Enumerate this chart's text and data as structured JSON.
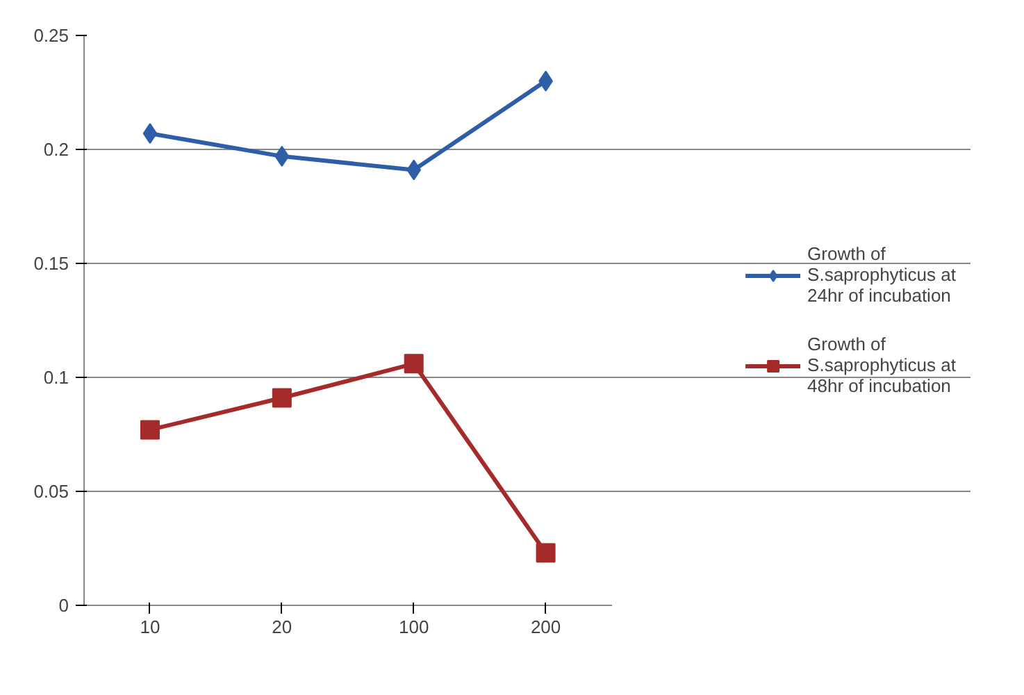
{
  "chart_data": {
    "type": "line",
    "categories": [
      "10",
      "20",
      "100",
      "200"
    ],
    "series": [
      {
        "name": "Growth of S.saprophyticus at 24hr of incubation",
        "color": "#2e5ea8",
        "marker": "diamond",
        "values": [
          0.207,
          0.197,
          0.191,
          0.23
        ]
      },
      {
        "name": "Growth of S.saprophyticus at 48hr of incubation",
        "color": "#a52a2a",
        "marker": "square",
        "values": [
          0.077,
          0.091,
          0.106,
          0.023
        ]
      }
    ],
    "ylim": [
      0,
      0.25
    ],
    "yticks": [
      0,
      0.05,
      0.1,
      0.15,
      0.2,
      0.25
    ],
    "grid": "y",
    "legend": "right",
    "line_style": "solid"
  }
}
